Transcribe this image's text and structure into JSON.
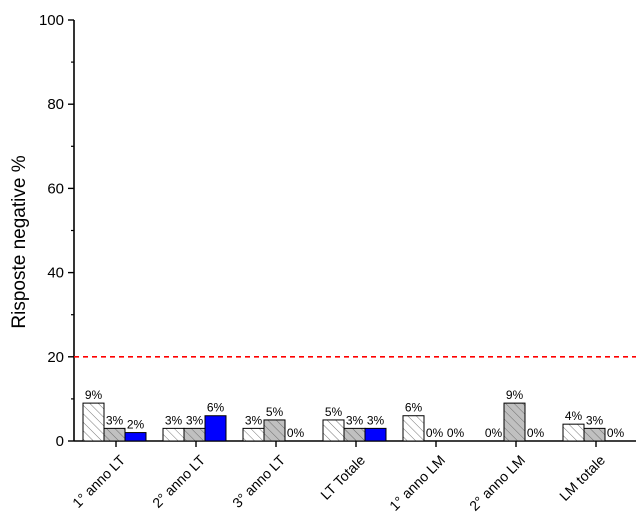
{
  "chart_data": {
    "type": "bar",
    "ylabel": "Risposte negative %",
    "xlabel": "",
    "ylim": [
      0,
      100
    ],
    "yticks": [
      0,
      20,
      40,
      60,
      80,
      100
    ],
    "categories": [
      "1° anno LT",
      "2° anno LT",
      "3° anno LT",
      "LT Totale",
      "1° anno LM",
      "2° anno LM",
      "LM totale"
    ],
    "series": [
      {
        "fill": "#ffffff",
        "pattern": "hatch",
        "values": [
          9,
          3,
          3,
          5,
          6,
          0,
          4
        ],
        "labels": [
          "9%",
          "3%",
          "3%",
          "5%",
          "6%",
          "0%",
          "4%"
        ]
      },
      {
        "fill": "#c0c0c0",
        "pattern": "hatch",
        "values": [
          3,
          3,
          5,
          3,
          0,
          9,
          3
        ],
        "labels": [
          "3%",
          "3%",
          "5%",
          "3%",
          "0%",
          "9%",
          "3%"
        ]
      },
      {
        "fill": "#0000ff",
        "pattern": "solid",
        "values": [
          2,
          6,
          0,
          3,
          0,
          0,
          0
        ],
        "labels": [
          "2%",
          "6%",
          "0%",
          "3%",
          "0%",
          "0%",
          "0%"
        ]
      }
    ],
    "reference_line": {
      "value": 20,
      "color": "#ff0000",
      "style": "dashed"
    },
    "grid": false,
    "legend": "none"
  }
}
